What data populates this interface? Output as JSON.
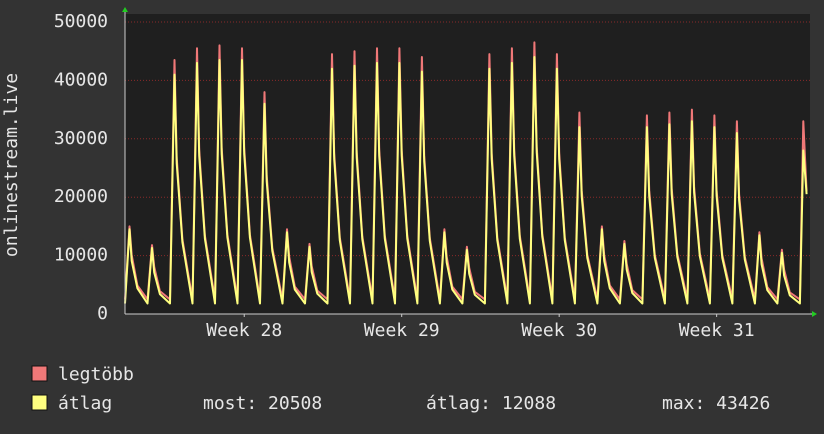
{
  "chart_data": {
    "type": "line",
    "y_label": "onlinestream.live",
    "x": [
      0,
      0.2,
      0.3,
      0.55,
      1,
      1.2,
      1.3,
      1.55,
      2,
      2.2,
      2.3,
      2.55,
      3,
      3.2,
      3.3,
      3.55,
      4,
      4.2,
      4.3,
      4.55,
      5,
      5.2,
      5.3,
      5.55,
      6,
      6.2,
      6.3,
      6.55,
      7,
      7.2,
      7.3,
      7.55,
      8,
      8.2,
      8.3,
      8.55,
      9,
      9.2,
      9.3,
      9.55,
      10,
      10.2,
      10.3,
      10.55,
      11,
      11.2,
      11.3,
      11.55,
      12,
      12.2,
      12.3,
      12.55,
      13,
      13.2,
      13.3,
      13.55,
      14,
      14.2,
      14.3,
      14.55,
      15,
      15.2,
      15.3,
      15.55,
      16,
      16.2,
      16.3,
      16.55,
      17,
      17.2,
      17.3,
      17.55,
      18,
      18.2,
      18.3,
      18.55,
      19,
      19.2,
      19.3,
      19.55,
      20,
      20.2,
      20.3,
      20.55,
      21,
      21.2,
      21.3,
      21.55,
      22,
      22.2,
      22.3,
      22.55,
      23,
      23.2,
      23.3,
      23.55,
      24,
      24.2,
      24.3,
      24.55,
      25,
      25.2,
      25.3,
      25.55,
      26,
      26.2,
      26.3,
      26.55,
      27,
      27.2,
      27.3,
      27.55,
      28,
      28.2,
      28.3,
      28.55,
      29,
      29.2,
      29.3,
      29.55,
      30,
      30.15,
      30.3
    ],
    "series": [
      {
        "name": "legtöbb",
        "color": "#f07878",
        "values": [
          2500,
          15000,
          10100,
          4900,
          2500,
          11800,
          8100,
          3900,
          2500,
          43500,
          26800,
          12800,
          2500,
          45500,
          28100,
          13400,
          2500,
          46000,
          28400,
          13600,
          2500,
          45500,
          28400,
          13600,
          2500,
          38000,
          23700,
          11300,
          2500,
          14500,
          9800,
          4700,
          2500,
          12000,
          8200,
          4000,
          2500,
          44500,
          27500,
          13100,
          2500,
          45000,
          27800,
          13300,
          2500,
          45500,
          28100,
          13400,
          2500,
          45500,
          28100,
          13400,
          2500,
          44000,
          27100,
          13000,
          2500,
          14500,
          9800,
          4700,
          2500,
          11500,
          7900,
          3800,
          2500,
          44500,
          27500,
          13100,
          2500,
          45500,
          28100,
          13400,
          2500,
          46500,
          28700,
          13700,
          2500,
          44500,
          27500,
          13100,
          2500,
          34500,
          21200,
          10100,
          2500,
          15000,
          10100,
          4900,
          2500,
          12500,
          8600,
          4100,
          2500,
          34000,
          21200,
          10100,
          2500,
          34500,
          21500,
          10300,
          2500,
          35000,
          21800,
          10400,
          2500,
          34000,
          21200,
          10100,
          2500,
          33000,
          20500,
          9800,
          2500,
          14000,
          9500,
          4600,
          2500,
          11000,
          7600,
          3700,
          2500,
          33000,
          21000
        ]
      },
      {
        "name": "átlag",
        "color": "#ffff80",
        "values": [
          1800,
          14500,
          9100,
          4400,
          1800,
          11300,
          7100,
          3400,
          1800,
          41000,
          25800,
          12300,
          1800,
          43000,
          27100,
          12900,
          1800,
          43500,
          27400,
          13100,
          1800,
          43500,
          27400,
          13100,
          1800,
          36000,
          22700,
          10800,
          1800,
          14000,
          8800,
          4200,
          1800,
          11500,
          7200,
          3500,
          1800,
          42000,
          26500,
          12600,
          1800,
          42500,
          26800,
          12800,
          1800,
          43000,
          27100,
          12900,
          1800,
          43000,
          27100,
          12900,
          1800,
          41500,
          26100,
          12500,
          1800,
          14000,
          8800,
          4200,
          1800,
          11000,
          6900,
          3300,
          1800,
          42000,
          26500,
          12600,
          1800,
          43000,
          27100,
          12900,
          1800,
          44000,
          27700,
          13200,
          1800,
          42000,
          26500,
          12600,
          1800,
          32000,
          20200,
          9600,
          1800,
          14500,
          9100,
          4400,
          1800,
          12000,
          7600,
          3600,
          1800,
          32000,
          20200,
          9600,
          1800,
          32500,
          20500,
          9800,
          1800,
          33000,
          20800,
          9900,
          1800,
          32000,
          20200,
          9600,
          1800,
          31000,
          19500,
          9300,
          1800,
          13500,
          8500,
          4100,
          1800,
          10500,
          6600,
          3200,
          1800,
          28000,
          20508
        ]
      }
    ],
    "xlim": [
      0,
      30.45
    ],
    "xticks": [
      {
        "value": 5.3,
        "label": "Week 28"
      },
      {
        "value": 12.3,
        "label": "Week 29"
      },
      {
        "value": 19.3,
        "label": "Week 30"
      },
      {
        "value": 26.3,
        "label": "Week 31"
      }
    ],
    "ylim": [
      0,
      50000
    ],
    "yticks": [
      0,
      10000,
      20000,
      30000,
      40000,
      50000
    ],
    "grid": true,
    "stats": [
      "most: 20508",
      "átlag: 12088",
      "max: 43426"
    ]
  }
}
